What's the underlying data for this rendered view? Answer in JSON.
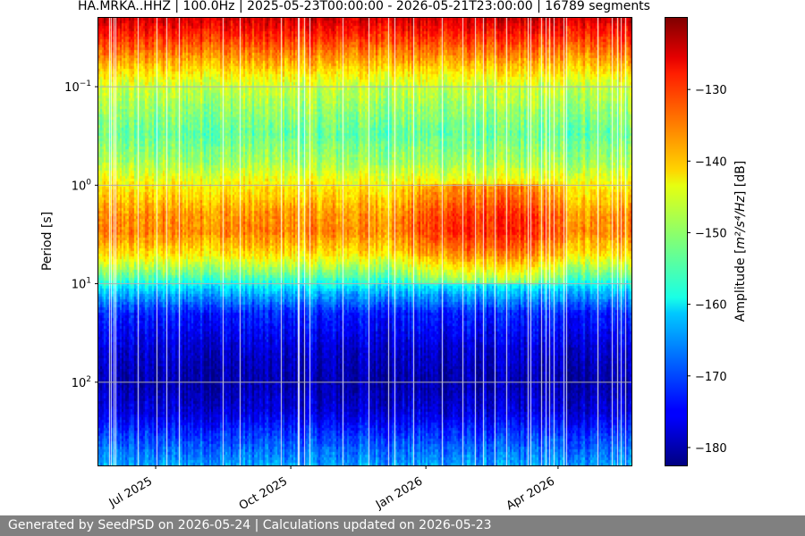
{
  "chart_data": {
    "type": "heatmap",
    "title": "HA.MRKA..HHZ | 100.0Hz | 2025-05-23T00:00:00 - 2026-05-21T23:00:00 | 16789 segments",
    "ylabel": "Period [s]",
    "y_scale": "log",
    "y_inverted": true,
    "y_range": [
      0.02,
      700
    ],
    "y_ticks": [
      {
        "value": 0.1,
        "base": "10",
        "exp": "−1"
      },
      {
        "value": 1,
        "base": "10",
        "exp": "0"
      },
      {
        "value": 10,
        "base": "10",
        "exp": "1"
      },
      {
        "value": 100,
        "base": "10",
        "exp": "2"
      }
    ],
    "x_range": [
      "2025-05-23",
      "2026-05-21"
    ],
    "x_ticks": [
      {
        "date": "2025-07-01",
        "label": "Jul 2025"
      },
      {
        "date": "2025-10-01",
        "label": "Oct 2025"
      },
      {
        "date": "2026-01-01",
        "label": "Jan 2026"
      },
      {
        "date": "2026-04-01",
        "label": "Apr 2026"
      }
    ],
    "grid": true,
    "colormap": "jet",
    "colorbar": {
      "label_prefix": "Amplitude [",
      "label_units": "m²/s⁴/Hz",
      "label_suffix": "] [dB]",
      "range": [
        -182.5,
        -120
      ],
      "ticks": [
        {
          "value": -130,
          "label": "−130"
        },
        {
          "value": -140,
          "label": "−140"
        },
        {
          "value": -150,
          "label": "−150"
        },
        {
          "value": -160,
          "label": "−160"
        },
        {
          "value": -170,
          "label": "−170"
        },
        {
          "value": -180,
          "label": "−180"
        }
      ]
    },
    "amplitude_profile_by_period": [
      {
        "period": 0.02,
        "db": -125
      },
      {
        "period": 0.03,
        "db": -130
      },
      {
        "period": 0.05,
        "db": -137
      },
      {
        "period": 0.1,
        "db": -147
      },
      {
        "period": 0.3,
        "db": -153
      },
      {
        "period": 0.6,
        "db": -149
      },
      {
        "period": 1,
        "db": -143
      },
      {
        "period": 2,
        "db": -137
      },
      {
        "period": 3,
        "db": -136
      },
      {
        "period": 5,
        "db": -142
      },
      {
        "period": 8,
        "db": -152
      },
      {
        "period": 12,
        "db": -163
      },
      {
        "period": 20,
        "db": -173
      },
      {
        "period": 50,
        "db": -178
      },
      {
        "period": 100,
        "db": -180
      },
      {
        "period": 200,
        "db": -177
      },
      {
        "period": 400,
        "db": -170
      },
      {
        "period": 700,
        "db": -165
      }
    ]
  },
  "footer": {
    "text": "Generated by SeedPSD on 2026-05-24 | Calculations updated on 2026-05-23"
  }
}
